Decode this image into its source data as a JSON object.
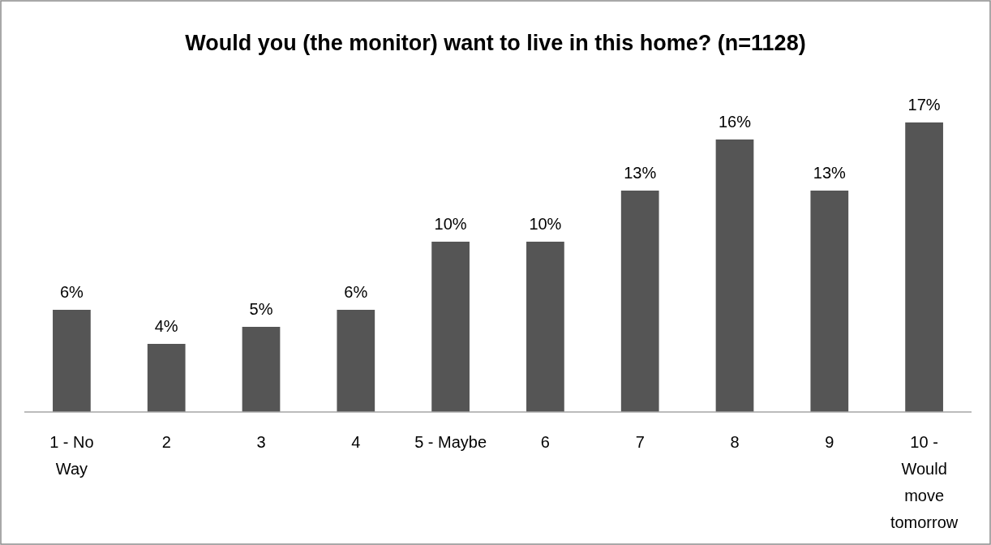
{
  "chart_data": {
    "type": "bar",
    "title": "Would you (the monitor) want to live in this home? (n=1128)",
    "categories": [
      "1 - No Way",
      "2",
      "3",
      "4",
      "5 - Maybe",
      "6",
      "7",
      "8",
      "9",
      "10 - Would move tomorrow"
    ],
    "values": [
      6,
      4,
      5,
      6,
      10,
      10,
      13,
      16,
      13,
      17
    ],
    "value_labels": [
      "6%",
      "4%",
      "5%",
      "6%",
      "10%",
      "10%",
      "13%",
      "16%",
      "13%",
      "17%"
    ],
    "color": "#555555",
    "tick_labels": "x"
  }
}
